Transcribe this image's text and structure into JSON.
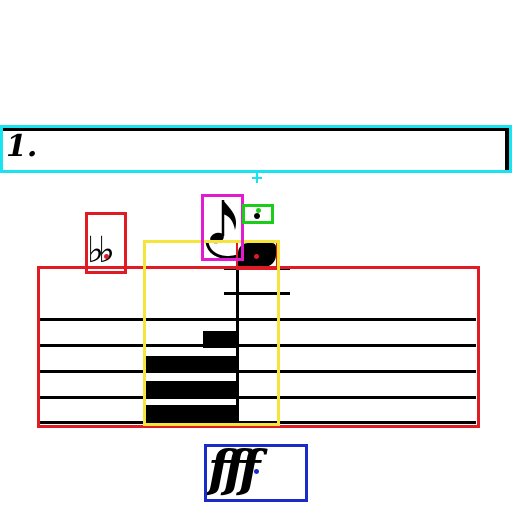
{
  "score": {
    "volta_number": "1.",
    "accidental_symbol": "♭♭",
    "dynamic_marking": "fff"
  },
  "annotation_colors": {
    "cyan": "#19e3ee",
    "red": "#e01b24",
    "yellow": "#f5e43a",
    "magenta": "#e01bd2",
    "green": "#1bcc1b",
    "blue": "#1a2bc8"
  }
}
